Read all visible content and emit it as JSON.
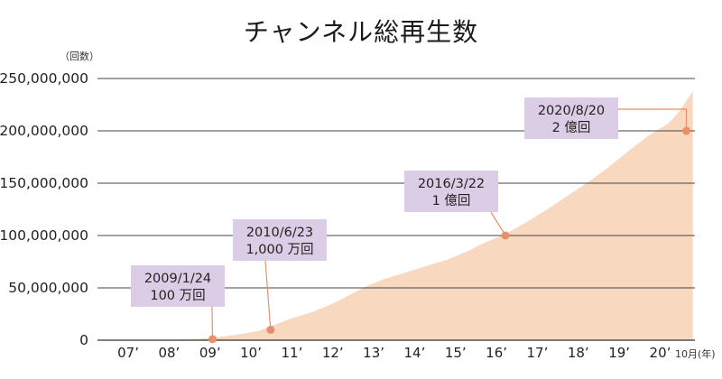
{
  "chart_data": {
    "type": "area",
    "title": "チャンネル総再生数",
    "y_unit_label": "（回数）",
    "x_unit_label": "10月(年)",
    "ylim": [
      0,
      250000000
    ],
    "y_ticks": [
      {
        "value": 0,
        "label": "0"
      },
      {
        "value": 50000000,
        "label": "50,000,000"
      },
      {
        "value": 100000000,
        "label": "100,000,000"
      },
      {
        "value": 150000000,
        "label": "150,000,000"
      },
      {
        "value": 200000000,
        "label": "200,000,000"
      },
      {
        "value": 250000000,
        "label": "250,000,000"
      }
    ],
    "x_range": [
      2006.8,
      2020.85
    ],
    "x_ticks": [
      {
        "value": 2007,
        "label": "07’"
      },
      {
        "value": 2008,
        "label": "08’"
      },
      {
        "value": 2009,
        "label": "09’"
      },
      {
        "value": 2010,
        "label": "10’"
      },
      {
        "value": 2011,
        "label": "11’"
      },
      {
        "value": 2012,
        "label": "12’"
      },
      {
        "value": 2013,
        "label": "13’"
      },
      {
        "value": 2014,
        "label": "14’"
      },
      {
        "value": 2015,
        "label": "15’"
      },
      {
        "value": 2016,
        "label": "16’"
      },
      {
        "value": 2017,
        "label": "17’"
      },
      {
        "value": 2018,
        "label": "18’"
      },
      {
        "value": 2019,
        "label": "19’"
      },
      {
        "value": 2020,
        "label": "20’"
      }
    ],
    "grid": true,
    "fill_color": "#f9d8c0",
    "marker_color": "#e8906a",
    "callout_color": "#dccde6",
    "x": [
      2007.8,
      2008.2,
      2008.6,
      2009.0,
      2009.4,
      2009.8,
      2010.2,
      2010.6,
      2011.0,
      2011.5,
      2012.0,
      2012.5,
      2012.9,
      2013.3,
      2013.8,
      2014.3,
      2014.8,
      2015.3,
      2015.7,
      2016.2,
      2016.7,
      2017.2,
      2017.7,
      2018.2,
      2018.7,
      2019.2,
      2019.7,
      2020.2,
      2020.5,
      2020.8
    ],
    "values": [
      0,
      500000,
      1000000,
      2000000,
      4000000,
      6000000,
      9000000,
      15000000,
      21000000,
      27000000,
      35000000,
      45000000,
      53000000,
      59000000,
      65000000,
      71000000,
      77000000,
      85000000,
      93000000,
      101000000,
      112000000,
      124000000,
      137000000,
      150000000,
      164000000,
      180000000,
      195000000,
      207000000,
      220000000,
      238000000
    ],
    "annotations": [
      {
        "date": "2009/1/24",
        "label": "100 万回",
        "x": 2009.06,
        "value": 1000000
      },
      {
        "date": "2010/6/23",
        "label": "1,000 万回",
        "x": 2010.48,
        "value": 10000000
      },
      {
        "date": "2016/3/22",
        "label": "1 億回",
        "x": 2016.22,
        "value": 100000000
      },
      {
        "date": "2020/8/20",
        "label": "2 億回",
        "x": 2020.64,
        "value": 200000000
      }
    ]
  }
}
